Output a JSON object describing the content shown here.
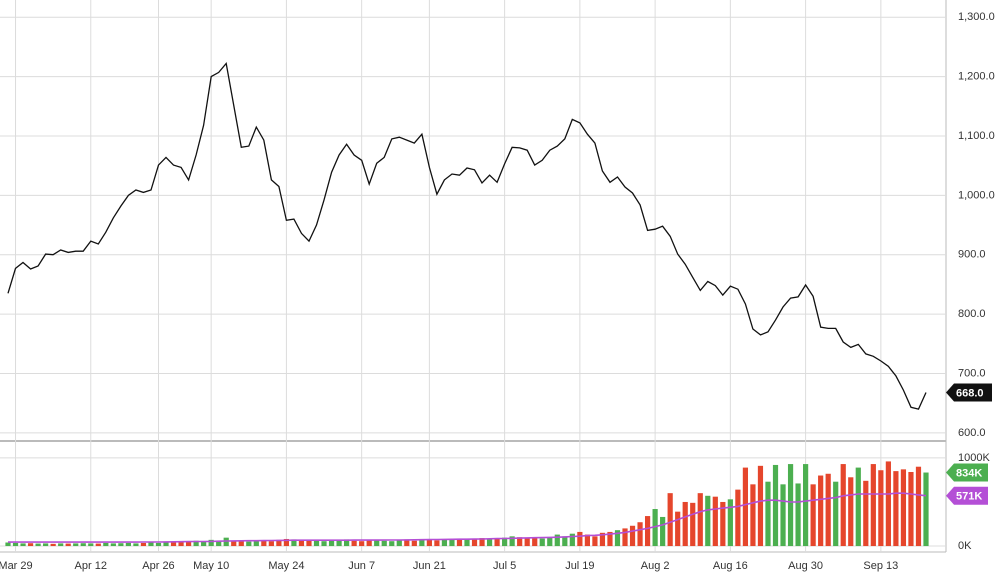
{
  "chart_data": [
    {
      "type": "line",
      "categories": [
        null,
        "Mar 29",
        null,
        null,
        null,
        null,
        null,
        null,
        null,
        null,
        null,
        "Apr 12",
        null,
        null,
        null,
        null,
        null,
        null,
        null,
        null,
        "Apr 26",
        null,
        null,
        null,
        null,
        null,
        null,
        "May 10",
        null,
        null,
        null,
        null,
        null,
        null,
        null,
        null,
        null,
        "May 24",
        null,
        null,
        null,
        null,
        null,
        null,
        null,
        null,
        null,
        "Jun 7",
        null,
        null,
        null,
        null,
        null,
        null,
        null,
        null,
        "Jun 21",
        null,
        null,
        null,
        null,
        null,
        null,
        null,
        null,
        null,
        "Jul 5",
        null,
        null,
        null,
        null,
        null,
        null,
        null,
        null,
        null,
        "Jul 19",
        null,
        null,
        null,
        null,
        null,
        null,
        null,
        null,
        null,
        "Aug 2",
        null,
        null,
        null,
        null,
        null,
        null,
        null,
        null,
        null,
        "Aug 16",
        null,
        null,
        null,
        null,
        null,
        null,
        null,
        null,
        null,
        "Aug 30",
        null,
        null,
        null,
        null,
        null,
        null,
        null,
        null,
        null,
        "Sep 13",
        null,
        null,
        null,
        null,
        null,
        null
      ],
      "series": [
        {
          "color": "#111111",
          "values": [
            835,
            877,
            887,
            876,
            881,
            901,
            900,
            908,
            904,
            906,
            906,
            923,
            918,
            938,
            962,
            982,
            1000,
            1009,
            1005,
            1009,
            1051,
            1064,
            1051,
            1047,
            1026,
            1068,
            1118,
            1200,
            1207,
            1222,
            1152,
            1081,
            1083,
            1115,
            1093,
            1026,
            1015,
            958,
            960,
            936,
            923,
            950,
            992,
            1039,
            1068,
            1086,
            1068,
            1059,
            1019,
            1054,
            1064,
            1095,
            1098,
            1093,
            1088,
            1103,
            1047,
            1002,
            1026,
            1036,
            1034,
            1046,
            1043,
            1021,
            1034,
            1022,
            1053,
            1081,
            1080,
            1076,
            1051,
            1059,
            1076,
            1083,
            1095,
            1128,
            1122,
            1103,
            1088,
            1041,
            1022,
            1031,
            1014,
            1004,
            984,
            941,
            943,
            948,
            931,
            901,
            884,
            862,
            840,
            855,
            848,
            832,
            847,
            842,
            817,
            775,
            765,
            770,
            790,
            812,
            827,
            829,
            849,
            830,
            778,
            776,
            776,
            753,
            744,
            749,
            733,
            729,
            721,
            712,
            696,
            672,
            643,
            640,
            668
          ],
          "value_labels": [
            null,
            null,
            null,
            null,
            null,
            null,
            null,
            null,
            null,
            null,
            null,
            null,
            null,
            null,
            null,
            null,
            null,
            null,
            null,
            null,
            null,
            null,
            null,
            null,
            null,
            null,
            null,
            null,
            null,
            null,
            null,
            null,
            null,
            null,
            null,
            null,
            null,
            null,
            null,
            null,
            null,
            null,
            null,
            null,
            null,
            null,
            null,
            null,
            null,
            null,
            null,
            null,
            null,
            null,
            null,
            null,
            null,
            null,
            null,
            null,
            null,
            null,
            null,
            null,
            null,
            null,
            null,
            null,
            null,
            null,
            null,
            null,
            null,
            null,
            null,
            null,
            null,
            null,
            null,
            null,
            null,
            null,
            null,
            null,
            null,
            null,
            null,
            null,
            null,
            null,
            null,
            null,
            null,
            null,
            null,
            null,
            null,
            null,
            null,
            null,
            null,
            null,
            null,
            null,
            null,
            null,
            null,
            null,
            null,
            null,
            null,
            null,
            null,
            null,
            null,
            null,
            null,
            null,
            null,
            null,
            null,
            null,
            "668.0"
          ]
        }
      ],
      "ylim": [
        588,
        1329
      ],
      "yticks": [
        {
          "value": 600,
          "label": "600.0"
        },
        {
          "value": 700,
          "label": "700.0"
        },
        {
          "value": 800,
          "label": "800.0"
        },
        {
          "value": 900,
          "label": "900.0"
        },
        {
          "value": 1000,
          "label": "1,000.0"
        },
        {
          "value": 1100,
          "label": "1,100.0"
        },
        {
          "value": 1200,
          "label": "1,200.0"
        },
        {
          "value": 1300,
          "label": "1,300.0"
        }
      ],
      "grid": true
    },
    {
      "type": "bar",
      "series": [
        {
          "up_color": "#4caf50",
          "down_color": "#e5462c",
          "values": [
            40,
            35,
            30,
            32,
            28,
            30,
            25,
            30,
            28,
            30,
            32,
            30,
            28,
            35,
            30,
            32,
            35,
            30,
            35,
            40,
            35,
            40,
            45,
            50,
            55,
            60,
            50,
            70,
            60,
            95,
            60,
            55,
            50,
            65,
            60,
            55,
            70,
            80,
            75,
            70,
            65,
            60,
            55,
            70,
            65,
            75,
            60,
            55,
            70,
            65,
            60,
            55,
            70,
            75,
            60,
            80,
            70,
            65,
            75,
            80,
            70,
            85,
            80,
            90,
            75,
            85,
            95,
            110,
            100,
            90,
            95,
            85,
            100,
            130,
            110,
            140,
            160,
            130,
            110,
            150,
            160,
            180,
            200,
            230,
            270,
            340,
            420,
            330,
            600,
            390,
            500,
            490,
            600,
            570,
            560,
            500,
            530,
            640,
            890,
            700,
            910,
            730,
            920,
            700,
            930,
            710,
            930,
            700,
            800,
            820,
            730,
            930,
            780,
            890,
            740,
            930,
            860,
            960,
            850,
            870,
            840,
            900,
            834
          ],
          "value_labels": [
            null,
            null,
            null,
            null,
            null,
            null,
            null,
            null,
            null,
            null,
            null,
            null,
            null,
            null,
            null,
            null,
            null,
            null,
            null,
            null,
            null,
            null,
            null,
            null,
            null,
            null,
            null,
            null,
            null,
            null,
            null,
            null,
            null,
            null,
            null,
            null,
            null,
            null,
            null,
            null,
            null,
            null,
            null,
            null,
            null,
            null,
            null,
            null,
            null,
            null,
            null,
            null,
            null,
            null,
            null,
            null,
            null,
            null,
            null,
            null,
            null,
            null,
            null,
            null,
            null,
            null,
            null,
            null,
            null,
            null,
            null,
            null,
            null,
            null,
            null,
            null,
            null,
            null,
            null,
            null,
            null,
            null,
            null,
            null,
            null,
            null,
            null,
            null,
            null,
            null,
            null,
            null,
            null,
            null,
            null,
            null,
            null,
            null,
            null,
            null,
            null,
            null,
            null,
            null,
            null,
            null,
            null,
            null,
            null,
            null,
            null,
            null,
            null,
            null,
            null,
            null,
            null,
            null,
            null,
            null,
            null,
            null,
            "834K"
          ]
        },
        {
          "type": "line",
          "color": "#b44fd6",
          "values": [
            45,
            45,
            45,
            45,
            45,
            45,
            45,
            45,
            45,
            45,
            45,
            45,
            45,
            45,
            45,
            45,
            45,
            45,
            46,
            46,
            46,
            47,
            48,
            49,
            50,
            51,
            52,
            53,
            55,
            57,
            58,
            59,
            60,
            61,
            62,
            63,
            64,
            65,
            66,
            66,
            66,
            66,
            66,
            66,
            66,
            66,
            67,
            67,
            67,
            67,
            68,
            68,
            69,
            70,
            71,
            72,
            73,
            74,
            75,
            76,
            77,
            78,
            79,
            80,
            82,
            84,
            86,
            88,
            90,
            92,
            94,
            96,
            98,
            100,
            104,
            108,
            112,
            118,
            122,
            128,
            135,
            145,
            155,
            170,
            185,
            200,
            220,
            240,
            270,
            300,
            330,
            360,
            390,
            410,
            420,
            430,
            440,
            450,
            470,
            490,
            510,
            520,
            520,
            510,
            500,
            500,
            510,
            520,
            530,
            540,
            550,
            570,
            580,
            590,
            590,
            590,
            590,
            590,
            600,
            600,
            590,
            580,
            571
          ],
          "value_labels": [
            null,
            null,
            null,
            null,
            null,
            null,
            null,
            null,
            null,
            null,
            null,
            null,
            null,
            null,
            null,
            null,
            null,
            null,
            null,
            null,
            null,
            null,
            null,
            null,
            null,
            null,
            null,
            null,
            null,
            null,
            null,
            null,
            null,
            null,
            null,
            null,
            null,
            null,
            null,
            null,
            null,
            null,
            null,
            null,
            null,
            null,
            null,
            null,
            null,
            null,
            null,
            null,
            null,
            null,
            null,
            null,
            null,
            null,
            null,
            null,
            null,
            null,
            null,
            null,
            null,
            null,
            null,
            null,
            null,
            null,
            null,
            null,
            null,
            null,
            null,
            null,
            null,
            null,
            null,
            null,
            null,
            null,
            null,
            null,
            null,
            null,
            null,
            null,
            null,
            null,
            null,
            null,
            null,
            null,
            null,
            null,
            null,
            null,
            null,
            null,
            null,
            null,
            null,
            null,
            null,
            null,
            null,
            null,
            null,
            null,
            null,
            null,
            null,
            null,
            null,
            null,
            null,
            null,
            null,
            null,
            null,
            null,
            "571K"
          ]
        }
      ],
      "ylim": [
        -45,
        1135
      ],
      "yticks": [
        {
          "value": 0,
          "label": "0K"
        },
        {
          "value": 1000,
          "label": "1000K"
        }
      ],
      "grid": true
    }
  ]
}
